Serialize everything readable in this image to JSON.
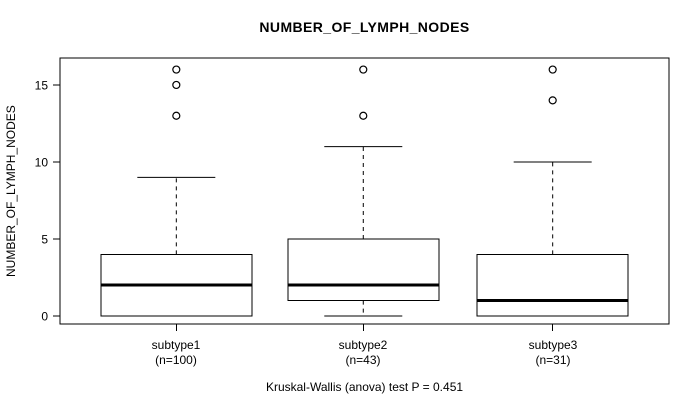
{
  "chart_data": {
    "type": "boxplot",
    "title": "NUMBER_OF_LYMPH_NODES",
    "ylabel": "NUMBER_OF_LYMPH_NODES",
    "xlabel": "",
    "caption": "Kruskal-Wallis (anova) test P = 0.451",
    "yticks": [
      0,
      5,
      10,
      15
    ],
    "ylim": [
      -0.52,
      16.75
    ],
    "grid": false,
    "legend": "none",
    "groups": [
      {
        "label": "subtype1",
        "sublabel": "(n=100)",
        "whisker_low": 0,
        "q1": 0,
        "median": 2,
        "q3": 4,
        "whisker_high": 9,
        "outliers": [
          13,
          15,
          16
        ]
      },
      {
        "label": "subtype2",
        "sublabel": "(n=43)",
        "whisker_low": 0,
        "q1": 1,
        "median": 2,
        "q3": 5,
        "whisker_high": 11,
        "outliers": [
          13,
          16
        ]
      },
      {
        "label": "subtype3",
        "sublabel": "(n=31)",
        "whisker_low": 0,
        "q1": 0,
        "median": 1,
        "q3": 4,
        "whisker_high": 10,
        "outliers": [
          14,
          16
        ]
      }
    ],
    "colors": {
      "line": "#000000",
      "background": "#ffffff",
      "box_fill": "#ffffff"
    }
  }
}
